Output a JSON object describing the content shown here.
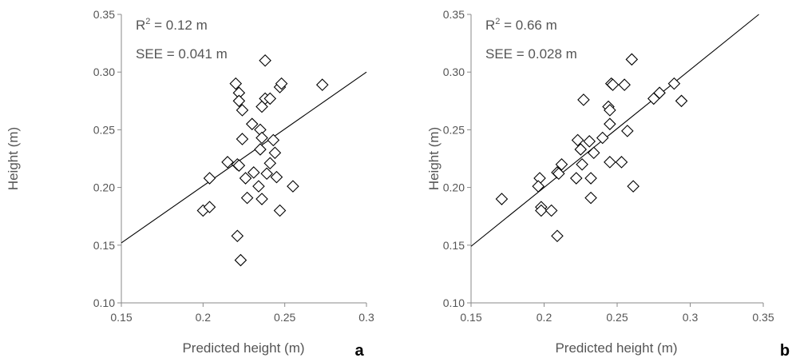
{
  "chart_data": [
    {
      "type": "scatter",
      "panel_label": "a",
      "xlabel": "Predicted height (m)",
      "ylabel": "Height (m)",
      "xlim": [
        0.15,
        0.3
      ],
      "ylim": [
        0.1,
        0.35
      ],
      "x_ticks": [
        "0.15",
        "0.2",
        "0.25",
        "0.3"
      ],
      "y_ticks": [
        "0.10",
        "0.15",
        "0.20",
        "0.25",
        "0.30",
        "0.35"
      ],
      "r2_prefix": "R",
      "r2_sup": "2",
      "r2_value": " = 0.12 m",
      "see_text": "SEE = 0.041 m",
      "fit_line": {
        "x": [
          0.15,
          0.3
        ],
        "y": [
          0.152,
          0.3
        ]
      },
      "points": [
        {
          "x": 0.22,
          "y": 0.29
        },
        {
          "x": 0.222,
          "y": 0.282
        },
        {
          "x": 0.222,
          "y": 0.275
        },
        {
          "x": 0.224,
          "y": 0.267
        },
        {
          "x": 0.238,
          "y": 0.31
        },
        {
          "x": 0.238,
          "y": 0.277
        },
        {
          "x": 0.241,
          "y": 0.277
        },
        {
          "x": 0.236,
          "y": 0.27
        },
        {
          "x": 0.247,
          "y": 0.287
        },
        {
          "x": 0.248,
          "y": 0.29
        },
        {
          "x": 0.273,
          "y": 0.289
        },
        {
          "x": 0.23,
          "y": 0.255
        },
        {
          "x": 0.235,
          "y": 0.25
        },
        {
          "x": 0.236,
          "y": 0.243
        },
        {
          "x": 0.224,
          "y": 0.242
        },
        {
          "x": 0.243,
          "y": 0.241
        },
        {
          "x": 0.235,
          "y": 0.233
        },
        {
          "x": 0.244,
          "y": 0.23
        },
        {
          "x": 0.215,
          "y": 0.222
        },
        {
          "x": 0.221,
          "y": 0.22
        },
        {
          "x": 0.222,
          "y": 0.219
        },
        {
          "x": 0.241,
          "y": 0.221
        },
        {
          "x": 0.239,
          "y": 0.212
        },
        {
          "x": 0.231,
          "y": 0.213
        },
        {
          "x": 0.226,
          "y": 0.208
        },
        {
          "x": 0.245,
          "y": 0.209
        },
        {
          "x": 0.204,
          "y": 0.208
        },
        {
          "x": 0.234,
          "y": 0.201
        },
        {
          "x": 0.255,
          "y": 0.201
        },
        {
          "x": 0.227,
          "y": 0.191
        },
        {
          "x": 0.236,
          "y": 0.19
        },
        {
          "x": 0.2,
          "y": 0.18
        },
        {
          "x": 0.204,
          "y": 0.183
        },
        {
          "x": 0.247,
          "y": 0.18
        },
        {
          "x": 0.221,
          "y": 0.158
        },
        {
          "x": 0.223,
          "y": 0.137
        }
      ]
    },
    {
      "type": "scatter",
      "panel_label": "b",
      "xlabel": "Predicted height (m)",
      "ylabel": "Height (m)",
      "xlim": [
        0.15,
        0.35
      ],
      "ylim": [
        0.1,
        0.35
      ],
      "x_ticks": [
        "0.15",
        "0.2",
        "0.25",
        "0.3",
        "0.35"
      ],
      "y_ticks": [
        "0.10",
        "0.15",
        "0.20",
        "0.25",
        "0.30",
        "0.35"
      ],
      "r2_prefix": "R",
      "r2_sup": "2",
      "r2_value": " = 0.66 m",
      "see_text": "SEE = 0.028 m",
      "fit_line": {
        "x": [
          0.15,
          0.347
        ],
        "y": [
          0.149,
          0.35
        ]
      },
      "points": [
        {
          "x": 0.26,
          "y": 0.311
        },
        {
          "x": 0.246,
          "y": 0.29
        },
        {
          "x": 0.247,
          "y": 0.289
        },
        {
          "x": 0.255,
          "y": 0.289
        },
        {
          "x": 0.289,
          "y": 0.29
        },
        {
          "x": 0.279,
          "y": 0.282
        },
        {
          "x": 0.275,
          "y": 0.277
        },
        {
          "x": 0.294,
          "y": 0.275
        },
        {
          "x": 0.227,
          "y": 0.276
        },
        {
          "x": 0.244,
          "y": 0.27
        },
        {
          "x": 0.245,
          "y": 0.267
        },
        {
          "x": 0.245,
          "y": 0.255
        },
        {
          "x": 0.257,
          "y": 0.249
        },
        {
          "x": 0.24,
          "y": 0.243
        },
        {
          "x": 0.223,
          "y": 0.241
        },
        {
          "x": 0.231,
          "y": 0.24
        },
        {
          "x": 0.225,
          "y": 0.233
        },
        {
          "x": 0.234,
          "y": 0.23
        },
        {
          "x": 0.245,
          "y": 0.222
        },
        {
          "x": 0.253,
          "y": 0.222
        },
        {
          "x": 0.226,
          "y": 0.22
        },
        {
          "x": 0.212,
          "y": 0.22
        },
        {
          "x": 0.209,
          "y": 0.213
        },
        {
          "x": 0.21,
          "y": 0.212
        },
        {
          "x": 0.197,
          "y": 0.208
        },
        {
          "x": 0.222,
          "y": 0.208
        },
        {
          "x": 0.232,
          "y": 0.208
        },
        {
          "x": 0.196,
          "y": 0.201
        },
        {
          "x": 0.261,
          "y": 0.201
        },
        {
          "x": 0.232,
          "y": 0.191
        },
        {
          "x": 0.171,
          "y": 0.19
        },
        {
          "x": 0.198,
          "y": 0.183
        },
        {
          "x": 0.198,
          "y": 0.18
        },
        {
          "x": 0.205,
          "y": 0.18
        },
        {
          "x": 0.209,
          "y": 0.158
        }
      ]
    }
  ]
}
